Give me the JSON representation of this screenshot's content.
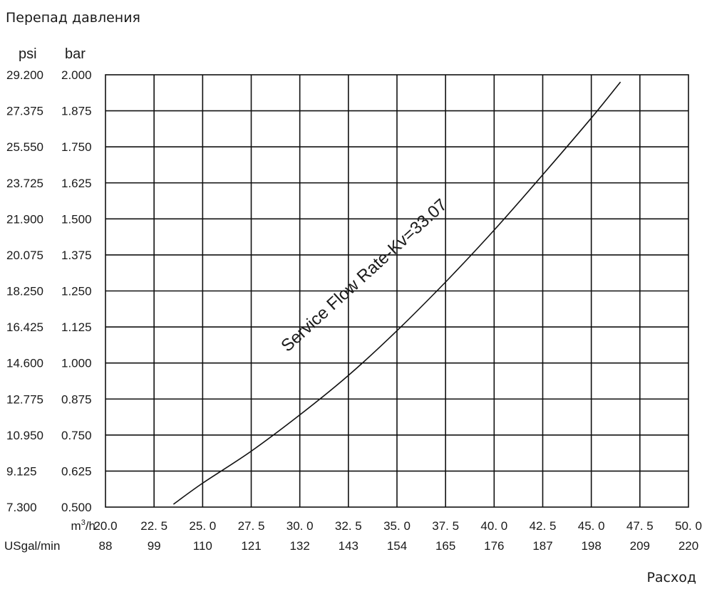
{
  "chart_data": {
    "type": "line",
    "title": "Перепад давления",
    "xlabel": "Расход",
    "y_units": {
      "left": "psi",
      "right": "bar"
    },
    "x_units": {
      "primary": "m³/h",
      "primary_base": "m",
      "primary_sup": "3",
      "primary_suffix": "/h",
      "secondary": "USgal/min"
    },
    "x_ticks_m3h": [
      "20.0",
      "22. 5",
      "25. 0",
      "27. 5",
      "30. 0",
      "32. 5",
      "35. 0",
      "37. 5",
      "40. 0",
      "42. 5",
      "45. 0",
      "47. 5",
      "50. 0"
    ],
    "x_ticks_usgal": [
      "88",
      "99",
      "110",
      "121",
      "132",
      "143",
      "154",
      "165",
      "176",
      "187",
      "198",
      "209",
      "220"
    ],
    "y_ticks_psi": [
      "29.200",
      "27.375",
      "25.550",
      "23.725",
      "21.900",
      "20.075",
      "18.250",
      "16.425",
      "14.600",
      "12.775",
      "10.950",
      "9.125",
      "7.300"
    ],
    "y_ticks_bar": [
      "2.000",
      "1.875",
      "1.750",
      "1.625",
      "1.500",
      "1.375",
      "1.250",
      "1.125",
      "1.000",
      "0.875",
      "0.750",
      "0.625",
      "0.500"
    ],
    "xlim": [
      20.0,
      50.0
    ],
    "ylim": [
      0.5,
      2.0
    ],
    "grid": true,
    "series": [
      {
        "name": "Service Flow Rate-Kv=33.07",
        "color": "#111111",
        "x": [
          23.5,
          25.0,
          27.5,
          30.0,
          32.5,
          35.0,
          37.5,
          40.0,
          42.5,
          45.0,
          46.5
        ],
        "y": [
          0.51,
          0.583,
          0.694,
          0.82,
          0.957,
          1.112,
          1.281,
          1.461,
          1.653,
          1.85,
          1.975
        ]
      }
    ]
  }
}
